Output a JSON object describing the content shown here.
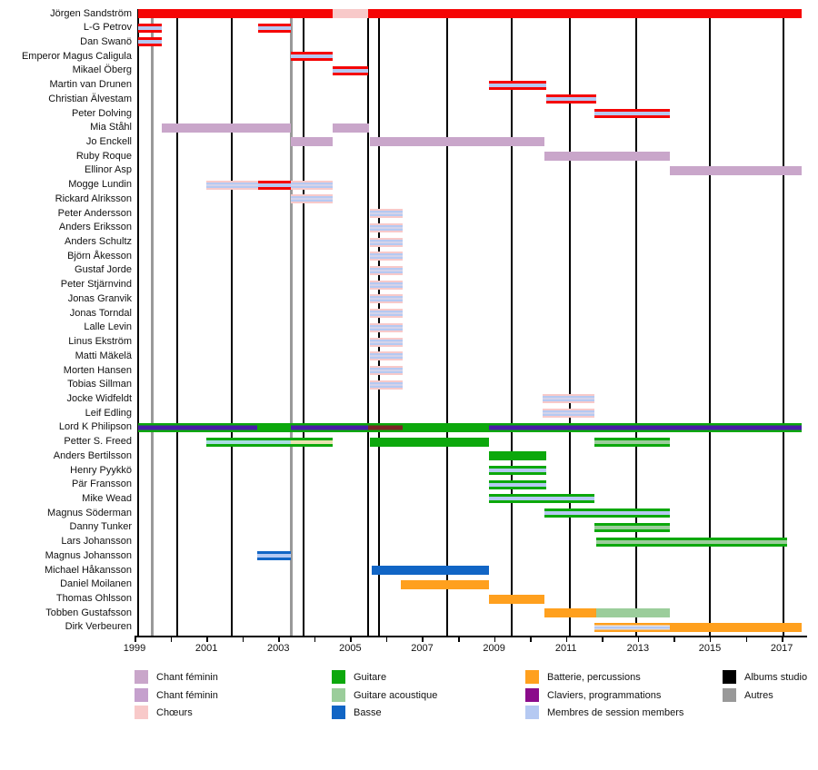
{
  "chart_data": {
    "type": "timeline",
    "title": "Band members timeline (Gantt-style), 1999-2017",
    "x_axis": {
      "start_year": 1999,
      "end_year": 2017.6,
      "tick_every_years": 1,
      "label_every_years": 2,
      "year_labels": [
        1999,
        2001,
        2003,
        2005,
        2007,
        2009,
        2011,
        2013,
        2015,
        2017
      ]
    },
    "palette": {
      "chant": "#f50505",
      "chant_feminin_1": "#c9a6ca",
      "chant_feminin_2": "#c5a0cd",
      "choeurs": "#f8c9c9",
      "guitare": "#0ca80c",
      "guitare_acoustique": "#9bcd9b",
      "basse": "#1165c5",
      "batterie": "#ffa01e",
      "claviers_legend": "#8b0b8b",
      "claviers_stripe": "#4a1ba8",
      "session": "#b5c9f2",
      "albums_studio": "#000000",
      "autres": "#999999",
      "maroon_overlap": "#7a2525",
      "session_cyan": "#a8dce2",
      "cream_overlap": "#e9e2b0",
      "session_gray": "#e6e6ef",
      "pale_pink": "#f3dde2"
    },
    "bar_styles": {
      "chant": [
        [
          "#f50505",
          1
        ]
      ],
      "chant_session": [
        [
          "#f50505",
          0.32
        ],
        [
          "#b5c9f2",
          0.36
        ],
        [
          "#f50505",
          0.32
        ]
      ],
      "choeurs": [
        [
          "#f8c9c9",
          1
        ]
      ],
      "feminin": [
        [
          "#c9a6ca",
          1
        ]
      ],
      "session_choeurs": [
        [
          "#f8c9c9",
          0.2
        ],
        [
          "#b5c9f2",
          0.24
        ],
        [
          "#f3dde2",
          0.12
        ],
        [
          "#b5c9f2",
          0.24
        ],
        [
          "#f8c9c9",
          0.2
        ]
      ],
      "guitare": [
        [
          "#0ca80c",
          1
        ]
      ],
      "guitare_session": [
        [
          "#0ca80c",
          0.3
        ],
        [
          "#b5c9f2",
          0.4
        ],
        [
          "#0ca80c",
          0.3
        ]
      ],
      "guitare_acoustique": [
        [
          "#0ca80c",
          0.28
        ],
        [
          "#9bcd9b",
          0.44
        ],
        [
          "#0ca80c",
          0.28
        ]
      ],
      "guitare_claviers": [
        [
          "#0ca80c",
          0.25
        ],
        [
          "#4a1ba8",
          0.5
        ],
        [
          "#0ca80c",
          0.25
        ]
      ],
      "guitare_chant_claviers": [
        [
          "#0ca80c",
          0.25
        ],
        [
          "#7a2525",
          0.5
        ],
        [
          "#0ca80c",
          0.25
        ]
      ],
      "guitare_session_cyan": [
        [
          "#0ca80c",
          0.28
        ],
        [
          "#a8dce2",
          0.44
        ],
        [
          "#0ca80c",
          0.28
        ]
      ],
      "guitare_cream": [
        [
          "#0ca80c",
          0.28
        ],
        [
          "#e9e2b0",
          0.44
        ],
        [
          "#0ca80c",
          0.28
        ]
      ],
      "basse": [
        [
          "#1165c5",
          1
        ]
      ],
      "basse_session": [
        [
          "#1165c5",
          0.3
        ],
        [
          "#b5c9f2",
          0.4
        ],
        [
          "#1165c5",
          0.3
        ]
      ],
      "batterie": [
        [
          "#ffa01e",
          1
        ]
      ],
      "batterie_session": [
        [
          "#ffa01e",
          0.25
        ],
        [
          "#e6e6ef",
          0.15
        ],
        [
          "#b5c9f2",
          0.25
        ],
        [
          "#e6e6ef",
          0.1
        ],
        [
          "#ffa01e",
          0.25
        ]
      ],
      "acoustique_pale": [
        [
          "#9bcd9b",
          1
        ]
      ]
    },
    "members": [
      {
        "name": "Jörgen Sandström",
        "segments": [
          {
            "from": 1999.1,
            "to": 2004.5,
            "style": "chant"
          },
          {
            "from": 2004.5,
            "to": 2005.5,
            "style": "choeurs"
          },
          {
            "from": 2005.5,
            "to": 2017.55,
            "style": "chant"
          }
        ]
      },
      {
        "name": "L-G Petrov",
        "segments": [
          {
            "from": 1999.1,
            "to": 1999.75,
            "style": "chant_session"
          },
          {
            "from": 2002.45,
            "to": 2003.35,
            "style": "chant_session"
          }
        ]
      },
      {
        "name": "Dan Swanö",
        "segments": [
          {
            "from": 1999.1,
            "to": 1999.75,
            "style": "chant_session"
          }
        ]
      },
      {
        "name": "Emperor Magus Caligula",
        "segments": [
          {
            "from": 2003.35,
            "to": 2004.5,
            "style": "chant_session"
          }
        ]
      },
      {
        "name": "Mikael Öberg",
        "segments": [
          {
            "from": 2004.5,
            "to": 2005.5,
            "style": "chant_session"
          }
        ]
      },
      {
        "name": "Martin van Drunen",
        "segments": [
          {
            "from": 2008.85,
            "to": 2010.45,
            "style": "chant_session"
          }
        ]
      },
      {
        "name": "Christian Älvestam",
        "segments": [
          {
            "from": 2010.45,
            "to": 2011.85,
            "style": "chant_session"
          }
        ]
      },
      {
        "name": "Peter Dolving",
        "segments": [
          {
            "from": 2011.8,
            "to": 2013.9,
            "style": "chant_session"
          }
        ]
      },
      {
        "name": "Mia Ståhl",
        "segments": [
          {
            "from": 1999.75,
            "to": 2003.35,
            "style": "feminin"
          },
          {
            "from": 2004.5,
            "to": 2005.52,
            "style": "feminin"
          }
        ]
      },
      {
        "name": "Jo Enckell",
        "segments": [
          {
            "from": 2003.35,
            "to": 2004.5,
            "style": "feminin"
          },
          {
            "from": 2005.55,
            "to": 2010.4,
            "style": "feminin"
          }
        ]
      },
      {
        "name": "Ruby Roque",
        "segments": [
          {
            "from": 2010.4,
            "to": 2013.9,
            "style": "feminin"
          }
        ]
      },
      {
        "name": "Ellinor Asp",
        "segments": [
          {
            "from": 2013.9,
            "to": 2017.55,
            "style": "feminin"
          }
        ]
      },
      {
        "name": "Mogge Lundin",
        "segments": [
          {
            "from": 2001.0,
            "to": 2004.5,
            "style": "session_choeurs"
          },
          {
            "from": 2002.45,
            "to": 2003.35,
            "style": "chant_session",
            "overlay": true
          }
        ]
      },
      {
        "name": "Rickard Alriksson",
        "segments": [
          {
            "from": 2003.35,
            "to": 2004.5,
            "style": "session_choeurs"
          }
        ]
      },
      {
        "name": "Peter Andersson",
        "segments": [
          {
            "from": 2005.55,
            "to": 2006.45,
            "style": "session_choeurs"
          }
        ]
      },
      {
        "name": "Anders Eriksson",
        "segments": [
          {
            "from": 2005.55,
            "to": 2006.45,
            "style": "session_choeurs"
          }
        ]
      },
      {
        "name": "Anders Schultz",
        "segments": [
          {
            "from": 2005.55,
            "to": 2006.45,
            "style": "session_choeurs"
          }
        ]
      },
      {
        "name": "Björn Åkesson",
        "segments": [
          {
            "from": 2005.55,
            "to": 2006.45,
            "style": "session_choeurs"
          }
        ]
      },
      {
        "name": "Gustaf Jorde",
        "segments": [
          {
            "from": 2005.55,
            "to": 2006.45,
            "style": "session_choeurs"
          }
        ]
      },
      {
        "name": "Peter Stjärnvind",
        "segments": [
          {
            "from": 2005.55,
            "to": 2006.45,
            "style": "session_choeurs"
          }
        ]
      },
      {
        "name": "Jonas Granvik",
        "segments": [
          {
            "from": 2005.55,
            "to": 2006.45,
            "style": "session_choeurs"
          }
        ]
      },
      {
        "name": "Jonas Torndal",
        "segments": [
          {
            "from": 2005.55,
            "to": 2006.45,
            "style": "session_choeurs"
          }
        ]
      },
      {
        "name": "Lalle Levin",
        "segments": [
          {
            "from": 2005.55,
            "to": 2006.45,
            "style": "session_choeurs"
          }
        ]
      },
      {
        "name": "Linus Ekström",
        "segments": [
          {
            "from": 2005.55,
            "to": 2006.45,
            "style": "session_choeurs"
          }
        ]
      },
      {
        "name": "Matti Mäkelä",
        "segments": [
          {
            "from": 2005.55,
            "to": 2006.45,
            "style": "session_choeurs"
          }
        ]
      },
      {
        "name": "Morten Hansen",
        "segments": [
          {
            "from": 2005.55,
            "to": 2006.45,
            "style": "session_choeurs"
          }
        ]
      },
      {
        "name": "Tobias Sillman",
        "segments": [
          {
            "from": 2005.55,
            "to": 2006.45,
            "style": "session_choeurs"
          }
        ]
      },
      {
        "name": "Jocke Widfeldt",
        "segments": [
          {
            "from": 2010.35,
            "to": 2011.8,
            "style": "session_choeurs"
          }
        ]
      },
      {
        "name": "Leif Edling",
        "segments": [
          {
            "from": 2010.35,
            "to": 2011.8,
            "style": "session_choeurs"
          }
        ]
      },
      {
        "name": "Lord K Philipson",
        "segments": [
          {
            "from": 1999.1,
            "to": 2002.4,
            "style": "guitare_claviers"
          },
          {
            "from": 2002.4,
            "to": 2003.35,
            "style": "guitare"
          },
          {
            "from": 2003.35,
            "to": 2005.5,
            "style": "guitare_claviers"
          },
          {
            "from": 2005.5,
            "to": 2006.45,
            "style": "guitare_chant_claviers"
          },
          {
            "from": 2006.45,
            "to": 2008.85,
            "style": "guitare"
          },
          {
            "from": 2008.85,
            "to": 2017.55,
            "style": "guitare_claviers"
          }
        ]
      },
      {
        "name": "Petter S. Freed",
        "segments": [
          {
            "from": 2001.0,
            "to": 2003.35,
            "style": "guitare_session_cyan"
          },
          {
            "from": 2003.35,
            "to": 2004.5,
            "style": "guitare_cream"
          },
          {
            "from": 2005.55,
            "to": 2008.85,
            "style": "guitare"
          },
          {
            "from": 2011.8,
            "to": 2013.9,
            "style": "guitare_acoustique"
          }
        ]
      },
      {
        "name": "Anders Bertilsson",
        "segments": [
          {
            "from": 2008.85,
            "to": 2010.45,
            "style": "guitare"
          }
        ]
      },
      {
        "name": "Henry Pyykkö",
        "segments": [
          {
            "from": 2008.85,
            "to": 2010.45,
            "style": "guitare_session"
          }
        ]
      },
      {
        "name": "Pär Fransson",
        "segments": [
          {
            "from": 2008.85,
            "to": 2010.45,
            "style": "guitare_session"
          }
        ]
      },
      {
        "name": "Mike Wead",
        "segments": [
          {
            "from": 2008.85,
            "to": 2011.8,
            "style": "guitare_session"
          }
        ]
      },
      {
        "name": "Magnus Söderman",
        "segments": [
          {
            "from": 2010.4,
            "to": 2013.9,
            "style": "guitare_session"
          }
        ]
      },
      {
        "name": "Danny Tunker",
        "segments": [
          {
            "from": 2011.8,
            "to": 2013.9,
            "style": "guitare_acoustique"
          }
        ]
      },
      {
        "name": "Lars Johansson",
        "segments": [
          {
            "from": 2011.85,
            "to": 2017.15,
            "style": "guitare_acoustique"
          }
        ]
      },
      {
        "name": "Magnus Johansson",
        "segments": [
          {
            "from": 2002.4,
            "to": 2003.35,
            "style": "basse_session"
          }
        ]
      },
      {
        "name": "Michael Håkansson",
        "segments": [
          {
            "from": 2005.6,
            "to": 2008.85,
            "style": "basse"
          }
        ]
      },
      {
        "name": "Daniel Moilanen",
        "segments": [
          {
            "from": 2006.4,
            "to": 2008.85,
            "style": "batterie"
          }
        ]
      },
      {
        "name": "Thomas Ohlsson",
        "segments": [
          {
            "from": 2008.85,
            "to": 2010.4,
            "style": "batterie"
          }
        ]
      },
      {
        "name": "Tobben Gustafsson",
        "segments": [
          {
            "from": 2010.4,
            "to": 2011.85,
            "style": "batterie"
          },
          {
            "from": 2011.85,
            "to": 2013.9,
            "style": "acoustique_pale"
          }
        ]
      },
      {
        "name": "Dirk Verbeuren",
        "segments": [
          {
            "from": 2011.8,
            "to": 2013.9,
            "style": "batterie_session"
          },
          {
            "from": 2013.9,
            "to": 2017.55,
            "style": "batterie"
          }
        ]
      }
    ],
    "events": {
      "albums_studio_years": [
        1999.1,
        2000.2,
        2001.7,
        2003.7,
        2005.5,
        2005.8,
        2007.7,
        2009.5,
        2011.1,
        2012.95,
        2015.0,
        2017.05
      ],
      "autres_years": [
        1999.5,
        2003.35
      ]
    },
    "legend": {
      "columns": [
        [
          {
            "label": "Chant féminin",
            "color": "#c9a6ca"
          },
          {
            "label": "Chant féminin",
            "color": "#c5a0cd"
          },
          {
            "label": "Chœurs",
            "color": "#f8c9c9"
          }
        ],
        [
          {
            "label": "Guitare",
            "color": "#0ca80c"
          },
          {
            "label": "Guitare acoustique",
            "color": "#9bcd9b"
          },
          {
            "label": "Basse",
            "color": "#1165c5"
          }
        ],
        [
          {
            "label": "Batterie, percussions",
            "color": "#ffa01e"
          },
          {
            "label": "Claviers, programmations",
            "color": "#8b0b8b"
          },
          {
            "label": "Membres de session members",
            "color": "#b5c9f2"
          }
        ],
        [
          {
            "label": "Albums studio",
            "color": "#000000"
          },
          {
            "label": "Autres",
            "color": "#999999"
          }
        ]
      ]
    }
  }
}
